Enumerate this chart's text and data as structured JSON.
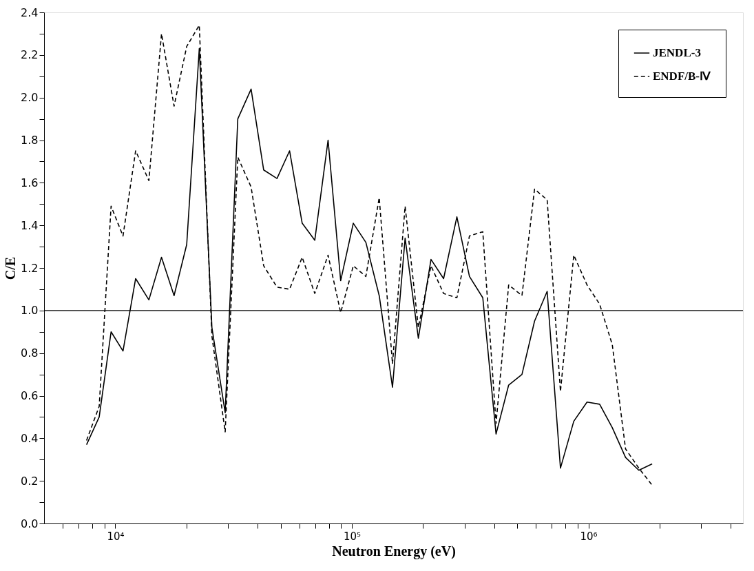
{
  "chart_data": {
    "type": "line",
    "xlabel": "Neutron Energy (eV)",
    "ylabel": "C/E",
    "x": [
      7560,
      8550,
      9600,
      10780,
      12190,
      13870,
      15680,
      17720,
      20040,
      22650,
      25610,
      29140,
      32950,
      37500,
      42390,
      48250,
      54540,
      61660,
      69700,
      79330,
      89680,
      101400,
      114600,
      130500,
      148500,
      167900,
      191000,
      216000,
      244200,
      277900,
      314100,
      357600,
      406900,
      460000,
      523600,
      591800,
      669100,
      761600,
      866900,
      986500,
      1115000,
      1261000,
      1435000,
      1633000,
      1859000
    ],
    "series": [
      {
        "name": "JENDL-3",
        "color": "#000000",
        "line_style": "solid",
        "values": [
          0.37,
          0.5,
          0.9,
          0.81,
          1.15,
          1.05,
          1.25,
          1.07,
          1.31,
          2.23,
          0.92,
          0.52,
          1.9,
          2.04,
          1.66,
          1.62,
          1.75,
          1.41,
          1.33,
          1.8,
          1.14,
          1.41,
          1.32,
          1.07,
          0.64,
          1.34,
          0.87,
          1.24,
          1.15,
          1.44,
          1.16,
          1.06,
          0.42,
          0.65,
          0.7,
          0.95,
          1.09,
          0.26,
          0.48,
          0.57,
          0.56,
          0.45,
          0.31,
          0.25,
          0.28
        ]
      },
      {
        "name": "ENDF/B-Ⅳ",
        "color": "#000000",
        "line_style": "dashed",
        "values": [
          0.39,
          0.55,
          1.49,
          1.35,
          1.75,
          1.61,
          2.3,
          1.96,
          2.24,
          2.34,
          0.88,
          0.43,
          1.72,
          1.58,
          1.21,
          1.11,
          1.1,
          1.25,
          1.08,
          1.26,
          0.99,
          1.21,
          1.16,
          1.53,
          0.75,
          1.49,
          0.92,
          1.21,
          1.08,
          1.06,
          1.35,
          1.37,
          0.47,
          1.12,
          1.07,
          1.57,
          1.52,
          0.62,
          1.26,
          1.12,
          1.03,
          0.84,
          0.35,
          0.26,
          0.18
        ]
      }
    ],
    "xlim": [
      5000,
      4500000
    ],
    "xticks": [
      {
        "value": 6000,
        "label": null
      },
      {
        "value": 7000,
        "label": null
      },
      {
        "value": 8000,
        "label": null
      },
      {
        "value": 9000,
        "label": null
      },
      {
        "value": 10000,
        "label": "10⁴"
      },
      {
        "value": 20000,
        "label": null
      },
      {
        "value": 30000,
        "label": null
      },
      {
        "value": 40000,
        "label": null
      },
      {
        "value": 50000,
        "label": null
      },
      {
        "value": 60000,
        "label": null
      },
      {
        "value": 70000,
        "label": null
      },
      {
        "value": 80000,
        "label": null
      },
      {
        "value": 90000,
        "label": null
      },
      {
        "value": 100000,
        "label": "10⁵"
      },
      {
        "value": 200000,
        "label": null
      },
      {
        "value": 300000,
        "label": null
      },
      {
        "value": 400000,
        "label": null
      },
      {
        "value": 500000,
        "label": null
      },
      {
        "value": 600000,
        "label": null
      },
      {
        "value": 700000,
        "label": null
      },
      {
        "value": 800000,
        "label": null
      },
      {
        "value": 900000,
        "label": null
      },
      {
        "value": 1000000,
        "label": "10⁶"
      },
      {
        "value": 2000000,
        "label": null
      },
      {
        "value": 3000000,
        "label": null
      },
      {
        "value": 4000000,
        "label": null
      }
    ],
    "ylim": [
      0,
      2.4
    ],
    "yticks": [
      {
        "value": 0,
        "label": "0.0"
      },
      {
        "value": 0.1,
        "label": null
      },
      0.2,
      {
        "value": 0.3,
        "label": null
      },
      0.4,
      {
        "value": 0.5,
        "label": null
      },
      0.6,
      {
        "value": 0.7,
        "label": null
      },
      0.8,
      {
        "value": 0.9,
        "label": null
      },
      {
        "value": 1.0,
        "label": "1.0"
      },
      {
        "value": 1.1,
        "label": null
      },
      1.2,
      {
        "value": 1.3,
        "label": null
      },
      1.4,
      {
        "value": 1.5,
        "label": null
      },
      1.6,
      {
        "value": 1.7,
        "label": null
      },
      1.8,
      {
        "value": 1.9,
        "label": null
      },
      {
        "value": 2.0,
        "label": "2.0"
      },
      {
        "value": 2.1,
        "label": null
      },
      2.2,
      {
        "value": 2.3,
        "label": null
      },
      2.4
    ],
    "log": "x",
    "grid": false,
    "legend": "top right",
    "marker": "none",
    "ref_lines": [
      {
        "axis": "y",
        "value": 1.0,
        "color": "#000000",
        "line_style": "solid"
      }
    ]
  }
}
